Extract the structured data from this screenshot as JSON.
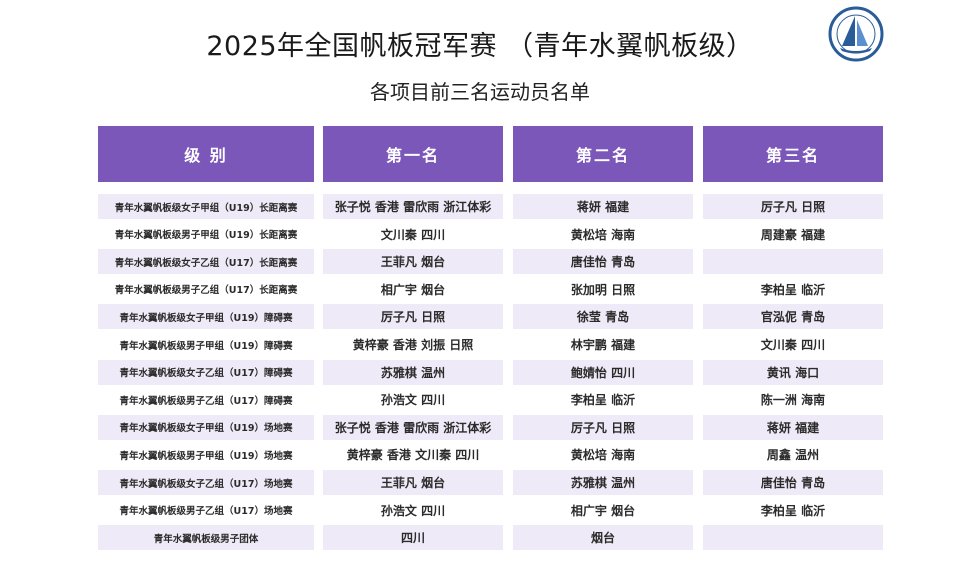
{
  "header": {
    "title": "2025年全国帆板冠军赛 （青年水翼帆板级）",
    "subtitle": "各项目前三名运动员名单"
  },
  "logo": {
    "icon": "sailing-association-logo-icon",
    "color": "#2a5c9a"
  },
  "table": {
    "columns": [
      "级  别",
      "第一名",
      "第二名",
      "第三名"
    ],
    "rows": [
      {
        "category": "青年水翼帆板级女子甲组（U19）长距离赛",
        "first": "张子悦  香港 雷欣雨  浙江体彩",
        "second": "蒋妍  福建",
        "third": "厉子凡  日照"
      },
      {
        "category": "青年水翼帆板级男子甲组（U19）长距离赛",
        "first": "文川秦  四川",
        "second": "黄松培  海南",
        "third": "周建豪  福建"
      },
      {
        "category": "青年水翼帆板级女子乙组（U17）长距离赛",
        "first": "王菲凡  烟台",
        "second": "唐佳怡  青岛",
        "third": ""
      },
      {
        "category": "青年水翼帆板级男子乙组（U17）长距离赛",
        "first": "相广宇  烟台",
        "second": "张加明  日照",
        "third": "李柏呈  临沂"
      },
      {
        "category": "青年水翼帆板级女子甲组（U19）障碍赛",
        "first": "厉子凡  日照",
        "second": "徐莹  青岛",
        "third": "官泓伲  青岛"
      },
      {
        "category": "青年水翼帆板级男子甲组（U19）障碍赛",
        "first": "黄梓豪  香港  刘振  日照",
        "second": "林宇鹏  福建",
        "third": "文川秦  四川"
      },
      {
        "category": "青年水翼帆板级女子乙组（U17）障碍赛",
        "first": "苏雅棋  温州",
        "second": "鲍婧怡  四川",
        "third": "黄讯  海口"
      },
      {
        "category": "青年水翼帆板级男子乙组（U17）障碍赛",
        "first": "孙浩文  四川",
        "second": "李柏呈  临沂",
        "third": "陈一洲  海南"
      },
      {
        "category": "青年水翼帆板级女子甲组（U19）场地赛",
        "first": "张子悦  香港 雷欣雨  浙江体彩",
        "second": "厉子凡  日照",
        "third": "蒋妍  福建"
      },
      {
        "category": "青年水翼帆板级男子甲组（U19）场地赛",
        "first": "黄梓豪  香港 文川秦  四川",
        "second": "黄松培  海南",
        "third": "周鑫  温州"
      },
      {
        "category": "青年水翼帆板级女子乙组（U17）场地赛",
        "first": "王菲凡  烟台",
        "second": "苏雅棋  温州",
        "third": "唐佳怡  青岛"
      },
      {
        "category": "青年水翼帆板级男子乙组（U17）场地赛",
        "first": "孙浩文  四川",
        "second": "相广宇  烟台",
        "third": "李柏呈  临沂"
      },
      {
        "category": "青年水翼帆板级男子团体",
        "first": "四川",
        "second": "烟台",
        "third": ""
      }
    ]
  },
  "colors": {
    "header_bg": "#7b57b9",
    "row_alt_bg": "#efeaf7"
  }
}
